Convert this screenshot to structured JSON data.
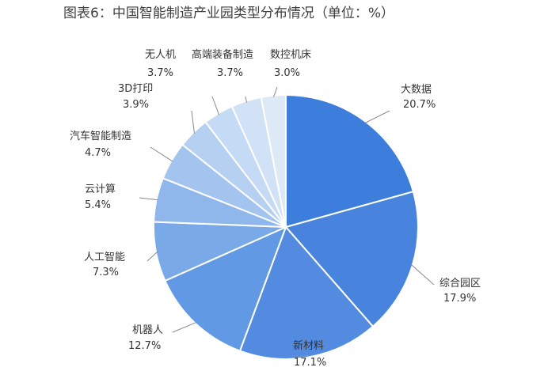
{
  "chart_data": {
    "type": "pie",
    "title": "图表6：中国智能制造产业园类型分布情况（单位：%）",
    "categories": [
      "大数据",
      "综合园区",
      "新材料",
      "机器人",
      "人工智能",
      "云计算",
      "汽车智能制造",
      "3D打印",
      "无人机",
      "高端装备制造",
      "数控机床"
    ],
    "values": [
      20.7,
      17.9,
      17.1,
      12.7,
      7.3,
      5.4,
      4.7,
      3.9,
      3.7,
      3.7,
      3.0
    ],
    "value_labels": [
      "20.7%",
      "17.9%",
      "17.1%",
      "12.7%",
      "7.3%",
      "5.4%",
      "4.7%",
      "3.9%",
      "3.7%",
      "3.7%",
      "3.0%"
    ],
    "colors": [
      "#3d7ddc",
      "#4884de",
      "#528be0",
      "#6299e4",
      "#7aa9e8",
      "#8fb7ec",
      "#a2c4ef",
      "#b6d0f2",
      "#c5daf4",
      "#d2e2f6",
      "#dde9f7"
    ],
    "start_direction": "12 o'clock",
    "order": "clockwise"
  }
}
